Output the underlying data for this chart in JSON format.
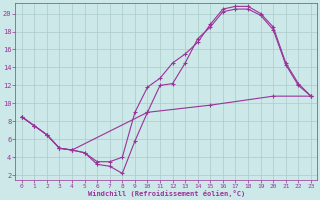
{
  "xlabel": "Windchill (Refroidissement éolien,°C)",
  "bg_color": "#cce8e8",
  "line_color": "#993399",
  "grid_color": "#aacccc",
  "spine_color": "#993399",
  "series1": [
    [
      0,
      8.5
    ],
    [
      1,
      7.5
    ],
    [
      2,
      6.5
    ],
    [
      3,
      5.0
    ],
    [
      4,
      4.8
    ],
    [
      5,
      4.5
    ],
    [
      6,
      3.2
    ],
    [
      7,
      3.0
    ],
    [
      8,
      2.2
    ],
    [
      9,
      5.8
    ],
    [
      10,
      9.0
    ],
    [
      11,
      12.0
    ],
    [
      12,
      12.2
    ],
    [
      13,
      14.5
    ],
    [
      14,
      17.2
    ],
    [
      15,
      18.5
    ],
    [
      16,
      20.2
    ],
    [
      17,
      20.5
    ],
    [
      18,
      20.5
    ],
    [
      19,
      19.8
    ],
    [
      20,
      18.2
    ],
    [
      21,
      14.3
    ],
    [
      22,
      12.0
    ],
    [
      23,
      10.8
    ]
  ],
  "series2": [
    [
      0,
      8.5
    ],
    [
      1,
      7.5
    ],
    [
      2,
      6.5
    ],
    [
      3,
      5.0
    ],
    [
      4,
      4.8
    ],
    [
      5,
      4.5
    ],
    [
      6,
      3.5
    ],
    [
      7,
      3.5
    ],
    [
      8,
      4.0
    ],
    [
      9,
      9.0
    ],
    [
      10,
      11.8
    ],
    [
      11,
      12.8
    ],
    [
      12,
      14.5
    ],
    [
      13,
      15.5
    ],
    [
      14,
      16.8
    ],
    [
      15,
      18.8
    ],
    [
      16,
      20.5
    ],
    [
      17,
      20.8
    ],
    [
      18,
      20.8
    ],
    [
      19,
      20.0
    ],
    [
      20,
      18.5
    ],
    [
      21,
      14.5
    ],
    [
      22,
      12.2
    ],
    [
      23,
      10.8
    ]
  ],
  "series3": [
    [
      0,
      8.5
    ],
    [
      1,
      7.5
    ],
    [
      2,
      6.5
    ],
    [
      3,
      5.0
    ],
    [
      4,
      4.8
    ],
    [
      10,
      9.0
    ],
    [
      15,
      9.8
    ],
    [
      20,
      10.8
    ],
    [
      23,
      10.8
    ]
  ],
  "xlim": [
    -0.5,
    23.5
  ],
  "ylim": [
    1.5,
    21.2
  ],
  "yticks": [
    2,
    4,
    6,
    8,
    10,
    12,
    14,
    16,
    18,
    20
  ],
  "xticks": [
    0,
    1,
    2,
    3,
    4,
    5,
    6,
    7,
    8,
    9,
    10,
    11,
    12,
    13,
    14,
    15,
    16,
    17,
    18,
    19,
    20,
    21,
    22,
    23
  ],
  "tick_fontsize": 4.5,
  "xlabel_fontsize": 5.0,
  "xlabel_fontweight": "bold",
  "marker": "+",
  "markersize": 3,
  "linewidth": 0.8
}
